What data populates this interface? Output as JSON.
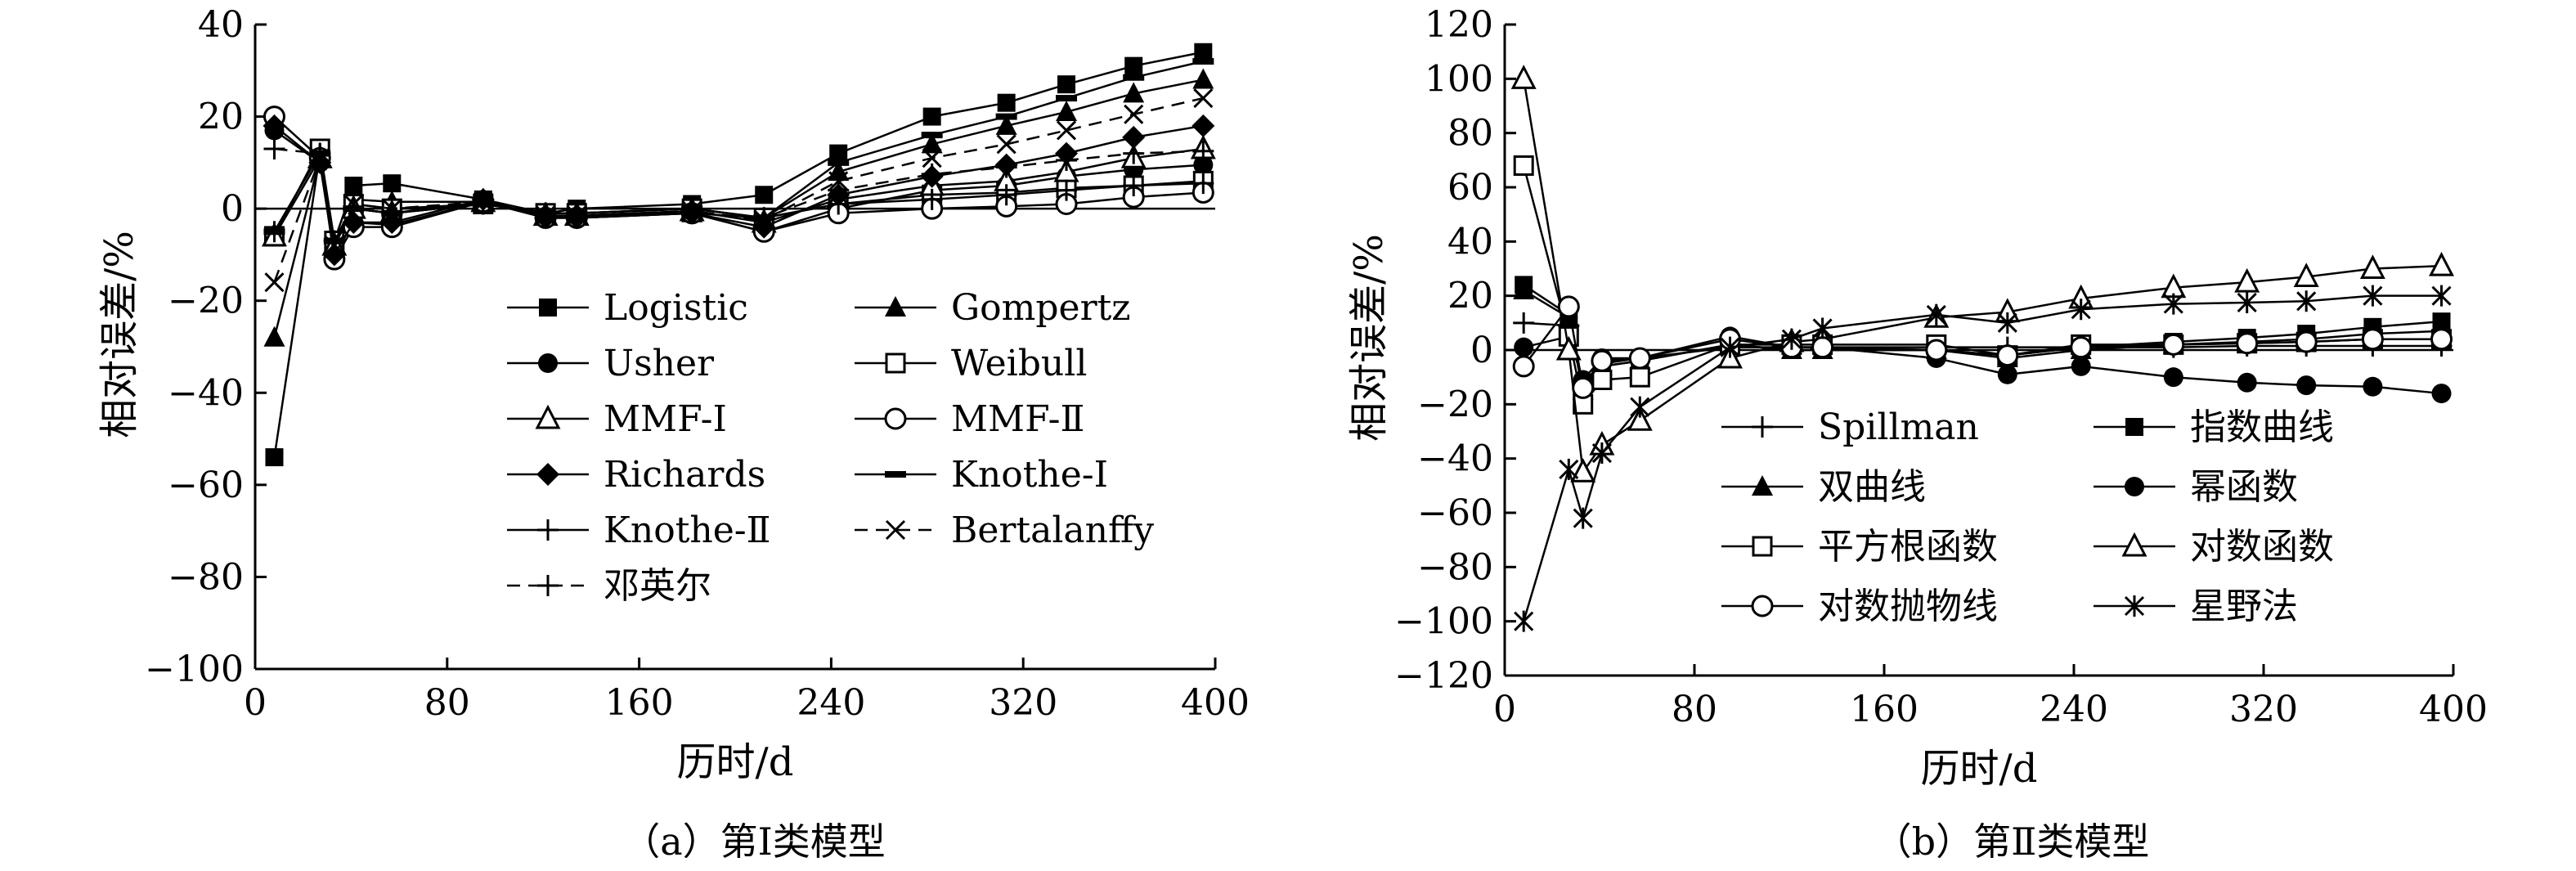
{
  "chart_data": [
    {
      "type": "line",
      "caption": "（a）第Ⅰ类模型",
      "xlabel": "历时/d",
      "ylabel": "相对误差/%",
      "xlim": [
        0,
        400
      ],
      "ylim": [
        -100,
        40
      ],
      "xticks": [
        0,
        80,
        160,
        240,
        320,
        400
      ],
      "yticks": [
        40,
        20,
        0,
        -20,
        -40,
        -60,
        -80,
        -100
      ],
      "xtick_labels": [
        "0",
        "80",
        "160",
        "240",
        "320",
        "400"
      ],
      "ytick_labels": [
        "40",
        "20",
        "0",
        "−20",
        "−40",
        "−60",
        "−80",
        "−100"
      ],
      "legend_position": "bottom-center",
      "x": [
        8,
        27,
        33,
        41,
        57,
        95,
        121,
        134,
        182,
        212,
        243,
        282,
        313,
        338,
        366,
        395
      ],
      "series": [
        {
          "name": "Logistic",
          "marker": "square",
          "dash": "solid",
          "values": [
            -54,
            12,
            -7,
            5,
            5.5,
            2,
            -1,
            0,
            1,
            3,
            12,
            20,
            23,
            27,
            31,
            34
          ]
        },
        {
          "name": "Gompertz",
          "marker": "triangle",
          "dash": "solid",
          "values": [
            -28,
            11,
            -9,
            2,
            1.5,
            1.5,
            -1.5,
            -1.5,
            -1,
            -2,
            8,
            14,
            18,
            21,
            25,
            28
          ]
        },
        {
          "name": "Usher",
          "marker": "circle",
          "dash": "solid",
          "values": [
            17,
            10,
            -10,
            -3,
            -3.5,
            1.5,
            -2,
            -2,
            -1,
            -5,
            0,
            4,
            5,
            7,
            8.5,
            9.5
          ]
        },
        {
          "name": "Weibull",
          "marker": "open-square",
          "dash": "solid",
          "values": [
            -6,
            13,
            -7,
            1,
            0,
            1,
            -1,
            -1,
            0,
            -2,
            1,
            3,
            3.5,
            4.5,
            5,
            6
          ]
        },
        {
          "name": "MMF-Ⅰ",
          "marker": "open-triangle",
          "dash": "solid",
          "values": [
            -6,
            11,
            -8,
            0,
            -1,
            1.5,
            -1.5,
            -1.5,
            -0.5,
            -3,
            2,
            5,
            6,
            8,
            11,
            13
          ]
        },
        {
          "name": "MMF-Ⅱ",
          "marker": "open-circle",
          "dash": "solid",
          "values": [
            20,
            11,
            -11,
            -4,
            -4,
            1.5,
            -2,
            -2,
            -1,
            -5,
            -1,
            0,
            0.5,
            1,
            2.5,
            3.5
          ]
        },
        {
          "name": "Richards",
          "marker": "diamond",
          "dash": "solid",
          "values": [
            18,
            10,
            -10,
            -3,
            -3,
            2,
            -2,
            -2,
            -1,
            -4,
            3,
            7,
            9.5,
            12,
            15.5,
            18
          ]
        },
        {
          "name": "Knothe-Ⅰ",
          "marker": "dash",
          "dash": "solid",
          "values": [
            -5,
            12,
            -7,
            0,
            -1,
            1,
            -1,
            -1,
            0,
            -2,
            10,
            16,
            20,
            24,
            28.5,
            32
          ]
        },
        {
          "name": "Knothe-Ⅱ",
          "marker": "plus",
          "dash": "solid",
          "values": [
            -5,
            12,
            -7,
            0,
            -1,
            1,
            -1,
            -1,
            0,
            -2,
            1,
            2,
            3,
            4,
            5,
            5.5
          ]
        },
        {
          "name": "Bertalanffy",
          "marker": "x",
          "dash": "dashed",
          "values": [
            -16,
            11,
            -8,
            1,
            0,
            1.5,
            -1.5,
            -1.5,
            -0.5,
            -2.5,
            6,
            11,
            14,
            17,
            20.5,
            24
          ]
        },
        {
          "name": "邓英尔",
          "marker": "plus",
          "dash": "dashed",
          "values": [
            13,
            12,
            -7,
            0,
            -1,
            1,
            -1,
            -1,
            0,
            -2,
            4,
            7.5,
            9,
            10.5,
            12,
            12.5
          ]
        }
      ]
    },
    {
      "type": "line",
      "caption": "（b）第Ⅱ类模型",
      "xlabel": "历时/d",
      "ylabel": "相对误差/%",
      "xlim": [
        0,
        400
      ],
      "ylim": [
        -120,
        120
      ],
      "xticks": [
        0,
        80,
        160,
        240,
        320,
        400
      ],
      "yticks": [
        120,
        100,
        80,
        60,
        40,
        20,
        0,
        -20,
        -40,
        -60,
        -80,
        -100,
        -120
      ],
      "xtick_labels": [
        "0",
        "80",
        "160",
        "240",
        "320",
        "400"
      ],
      "ytick_labels": [
        "120",
        "100",
        "80",
        "60",
        "40",
        "20",
        "0",
        "−20",
        "−40",
        "−60",
        "−80",
        "−100",
        "−120"
      ],
      "legend_position": "bottom-center",
      "x": [
        8,
        27,
        33,
        41,
        57,
        95,
        121,
        134,
        182,
        212,
        243,
        282,
        313,
        338,
        366,
        395
      ],
      "series": [
        {
          "name": "Spillman",
          "marker": "plus",
          "dash": "solid",
          "values": [
            10,
            9,
            -12,
            -5,
            -3,
            1,
            1,
            1,
            1,
            1,
            1,
            1,
            1.5,
            1.5,
            1.5,
            1.5
          ]
        },
        {
          "name": "指数曲线",
          "marker": "square",
          "dash": "solid",
          "values": [
            24,
            13,
            -16,
            -6,
            -4,
            2,
            0,
            0,
            0,
            -2,
            1,
            3,
            4.5,
            6,
            8.5,
            10.5
          ]
        },
        {
          "name": "双曲线",
          "marker": "triangle",
          "dash": "solid",
          "values": [
            22,
            12,
            -15,
            -6,
            -4,
            2,
            0,
            0,
            0,
            -3,
            0,
            2,
            3,
            4,
            6,
            7
          ]
        },
        {
          "name": "幂函数",
          "marker": "circle",
          "dash": "solid",
          "values": [
            1,
            5,
            -11,
            -3,
            -3,
            5,
            1,
            1,
            -3,
            -9,
            -6,
            -10,
            -12,
            -13,
            -13.5,
            -16
          ]
        },
        {
          "name": "平方根函数",
          "marker": "open-square",
          "dash": "solid",
          "values": [
            68,
            5,
            -20,
            -11,
            -10,
            2,
            2,
            2,
            2,
            -2,
            2,
            2,
            2.5,
            3,
            4,
            4
          ]
        },
        {
          "name": "对数函数",
          "marker": "open-triangle",
          "dash": "solid",
          "values": [
            100,
            0,
            -45,
            -35,
            -26,
            -3,
            3,
            4,
            12,
            14,
            19,
            23,
            25,
            27,
            30,
            31
          ]
        },
        {
          "name": "对数抛物线",
          "marker": "open-circle",
          "dash": "solid",
          "values": [
            -6,
            16,
            -14,
            -4,
            -3,
            4,
            1,
            1,
            0,
            -2,
            1,
            2,
            2.5,
            3,
            4,
            4
          ]
        },
        {
          "name": "星野法",
          "marker": "asterisk",
          "dash": "solid",
          "values": [
            -100,
            -44,
            -62,
            -38,
            -21,
            1,
            4,
            8,
            13,
            10,
            15,
            17,
            17.5,
            18,
            20,
            20
          ]
        }
      ]
    }
  ]
}
